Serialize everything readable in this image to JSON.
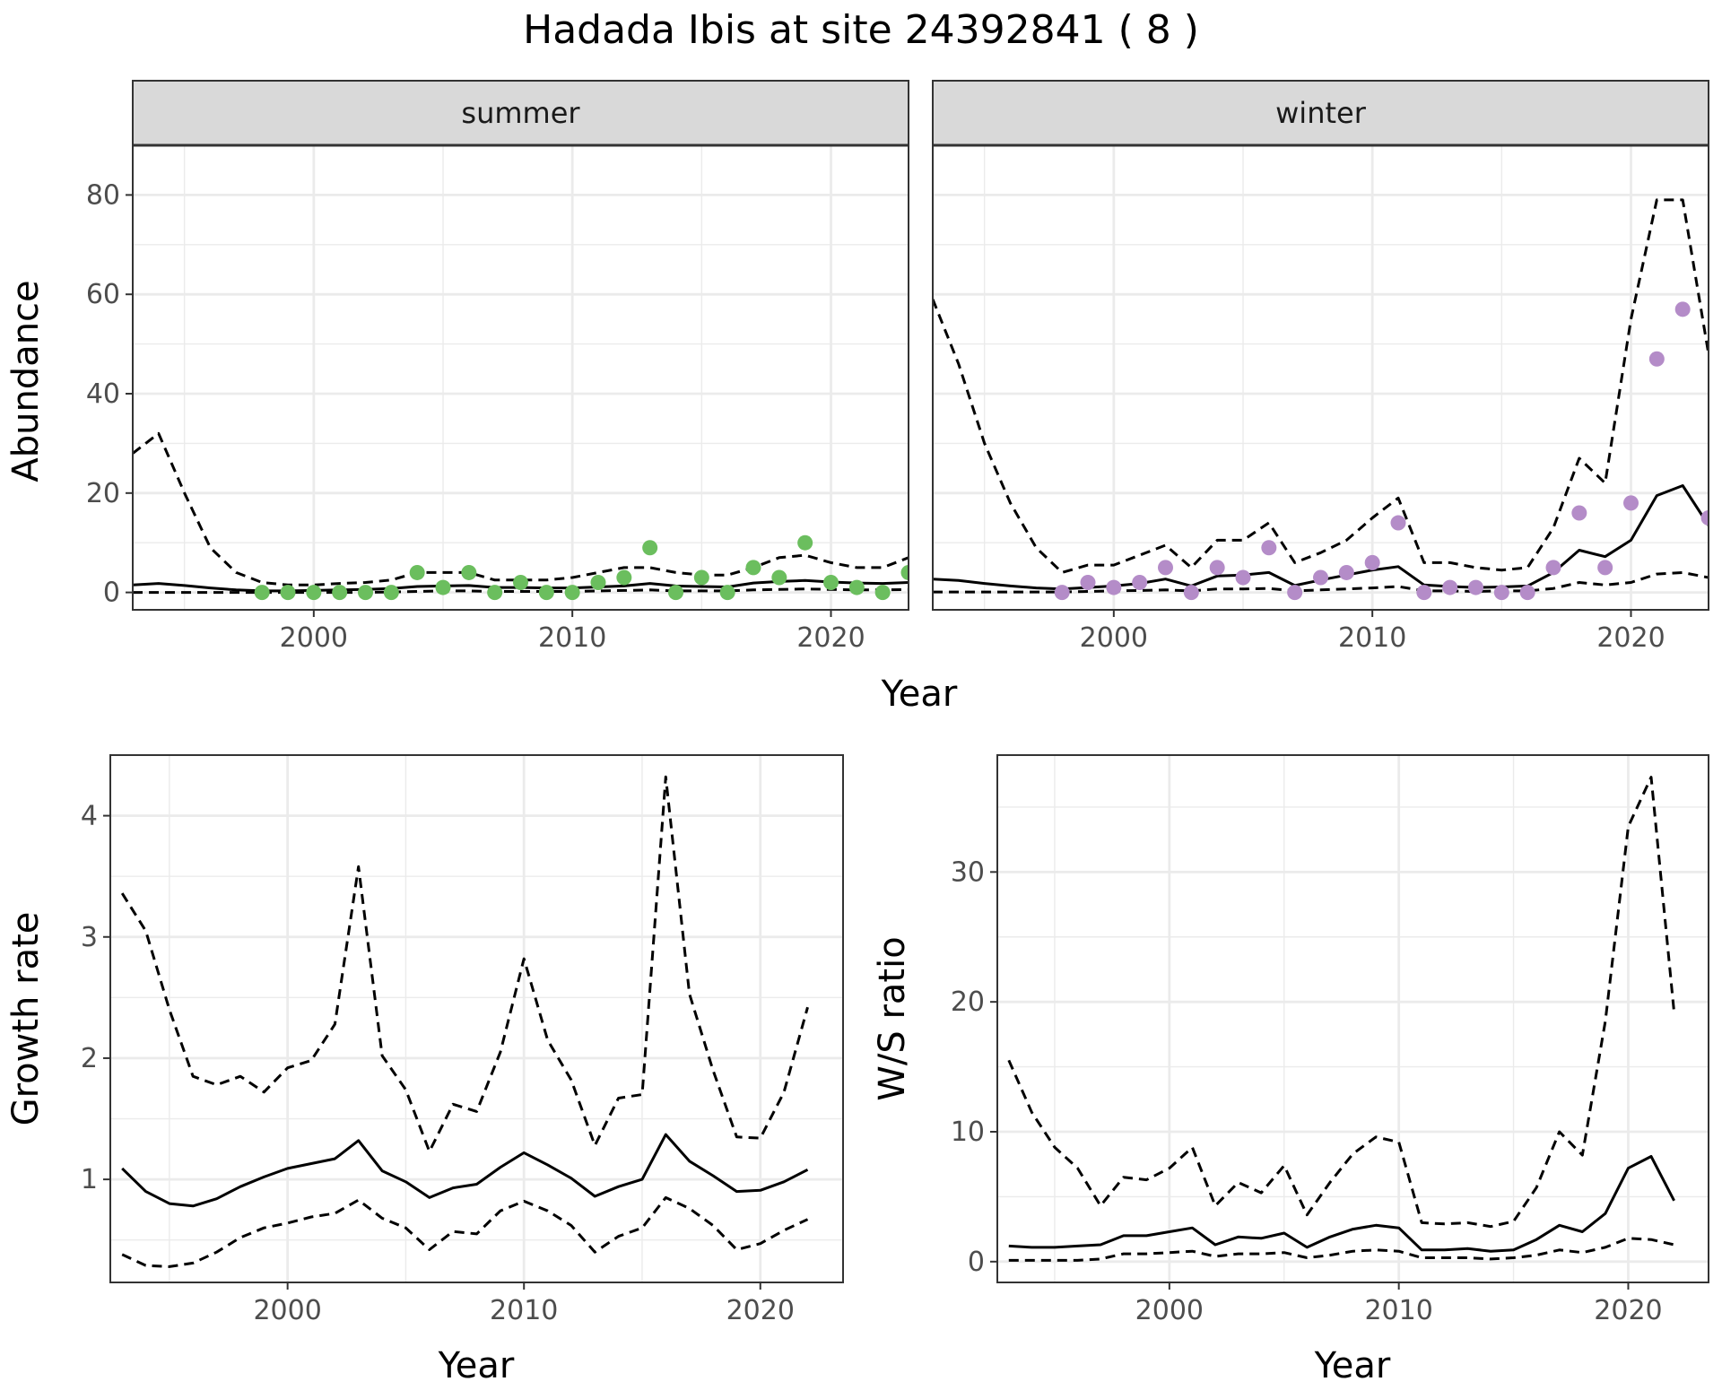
{
  "title": "Hadada Ibis at site 24392841 ( 8 )",
  "colors": {
    "summer_points": "#6BBE5E",
    "winter_points": "#B48CC8",
    "strip_fill": "#D9D9D9",
    "grid_major": "#EBEBEB",
    "line": "#000000"
  },
  "chart_data": [
    {
      "type": "line",
      "panel": "summer",
      "facet_label": "summer",
      "xlabel": "Year",
      "ylabel": "Abundance",
      "xlim": [
        1993,
        2023
      ],
      "ylim": [
        -3.5,
        90
      ],
      "xticks": [
        2000,
        2010,
        2020
      ],
      "yticks": [
        0,
        20,
        40,
        60,
        80
      ],
      "grid": true,
      "points": {
        "color": "#6BBE5E",
        "x": [
          1998,
          1999,
          2000,
          2001,
          2002,
          2003,
          2004,
          2005,
          2006,
          2007,
          2008,
          2009,
          2010,
          2011,
          2012,
          2013,
          2014,
          2015,
          2016,
          2017,
          2018,
          2019,
          2020,
          2021,
          2022,
          2023
        ],
        "y": [
          0,
          0,
          0,
          0,
          0,
          0,
          4,
          1,
          4,
          0,
          2,
          0,
          0,
          2,
          3,
          9,
          0,
          3,
          0,
          5,
          3,
          10,
          2,
          1,
          0,
          4
        ]
      },
      "series": [
        {
          "style": "solid",
          "x": [
            1993,
            1994,
            1995,
            1996,
            1997,
            1998,
            1999,
            2000,
            2001,
            2002,
            2003,
            2004,
            2005,
            2006,
            2007,
            2008,
            2009,
            2010,
            2011,
            2012,
            2013,
            2014,
            2015,
            2016,
            2017,
            2018,
            2019,
            2020,
            2021,
            2022,
            2023
          ],
          "y": [
            1.5,
            1.8,
            1.4,
            0.9,
            0.5,
            0.3,
            0.3,
            0.4,
            0.5,
            0.6,
            0.8,
            1.2,
            1.3,
            1.4,
            1.0,
            1.0,
            0.9,
            0.9,
            1.1,
            1.3,
            1.8,
            1.3,
            1.2,
            1.1,
            1.9,
            2.2,
            2.4,
            2.1,
            1.9,
            1.8,
            2.0
          ]
        },
        {
          "style": "dashed",
          "x": [
            1993,
            1994,
            1995,
            1996,
            1997,
            1998,
            1999,
            2000,
            2001,
            2002,
            2003,
            2004,
            2005,
            2006,
            2007,
            2008,
            2009,
            2010,
            2011,
            2012,
            2013,
            2014,
            2015,
            2016,
            2017,
            2018,
            2019,
            2020,
            2021,
            2022,
            2023
          ],
          "y": [
            28,
            32,
            20,
            9,
            4,
            2,
            1.5,
            1.5,
            1.8,
            2,
            2.5,
            4,
            4,
            4,
            2.5,
            2.5,
            2.5,
            3,
            4,
            5,
            5,
            4,
            3.5,
            3.5,
            5,
            7,
            7.5,
            6,
            5,
            5,
            7
          ]
        },
        {
          "style": "dashed",
          "x": [
            1993,
            1994,
            1995,
            1996,
            1997,
            1998,
            1999,
            2000,
            2001,
            2002,
            2003,
            2004,
            2005,
            2006,
            2007,
            2008,
            2009,
            2010,
            2011,
            2012,
            2013,
            2014,
            2015,
            2016,
            2017,
            2018,
            2019,
            2020,
            2021,
            2022,
            2023
          ],
          "y": [
            0,
            0,
            0,
            0,
            0,
            0,
            0,
            0,
            0,
            0,
            0.1,
            0.2,
            0.3,
            0.3,
            0.2,
            0.2,
            0.2,
            0.2,
            0.3,
            0.4,
            0.5,
            0.3,
            0.3,
            0.3,
            0.5,
            0.6,
            0.7,
            0.6,
            0.5,
            0.5,
            0.6
          ]
        }
      ]
    },
    {
      "type": "line",
      "panel": "winter",
      "facet_label": "winter",
      "xlabel": "Year",
      "ylabel": "Abundance",
      "xlim": [
        1993,
        2023
      ],
      "ylim": [
        -3.5,
        90
      ],
      "xticks": [
        2000,
        2010,
        2020
      ],
      "yticks": [
        0,
        20,
        40,
        60,
        80
      ],
      "grid": true,
      "points": {
        "color": "#B48CC8",
        "x": [
          1998,
          1999,
          2000,
          2001,
          2002,
          2003,
          2004,
          2005,
          2006,
          2007,
          2008,
          2009,
          2010,
          2011,
          2012,
          2013,
          2014,
          2015,
          2016,
          2017,
          2018,
          2019,
          2020,
          2021,
          2022,
          2023
        ],
        "y": [
          0,
          2,
          1,
          2,
          5,
          0,
          5,
          3,
          9,
          0,
          3,
          4,
          6,
          14,
          0,
          1,
          1,
          0,
          0,
          5,
          16,
          5,
          18,
          47,
          57,
          15
        ]
      },
      "series": [
        {
          "style": "solid",
          "x": [
            1993,
            1994,
            1995,
            1996,
            1997,
            1998,
            1999,
            2000,
            2001,
            2002,
            2003,
            2004,
            2005,
            2006,
            2007,
            2008,
            2009,
            2010,
            2011,
            2012,
            2013,
            2014,
            2015,
            2016,
            2017,
            2018,
            2019,
            2020,
            2021,
            2022,
            2023
          ],
          "y": [
            2.7,
            2.4,
            1.8,
            1.3,
            0.9,
            0.7,
            1.0,
            1.3,
            1.8,
            2.7,
            1.3,
            3.3,
            3.5,
            4.0,
            1.4,
            2.5,
            3.5,
            4.5,
            5.2,
            1.5,
            1.2,
            1.0,
            1.1,
            1.3,
            4.0,
            8.5,
            7.2,
            10.5,
            19.5,
            21.5,
            13.5
          ]
        },
        {
          "style": "dashed",
          "x": [
            1993,
            1994,
            1995,
            1996,
            1997,
            1998,
            1999,
            2000,
            2001,
            2002,
            2003,
            2004,
            2005,
            2006,
            2007,
            2008,
            2009,
            2010,
            2011,
            2012,
            2013,
            2014,
            2015,
            2016,
            2017,
            2018,
            2019,
            2020,
            2021,
            2022,
            2023
          ],
          "y": [
            59,
            46,
            30,
            18,
            9,
            4,
            5.5,
            5.5,
            7.5,
            9.5,
            5,
            10.5,
            10.5,
            14,
            6,
            8,
            10.5,
            15,
            19,
            6,
            6,
            5,
            4.5,
            5,
            13,
            27,
            22,
            55,
            79,
            79,
            48
          ]
        },
        {
          "style": "dashed",
          "x": [
            1993,
            1994,
            1995,
            1996,
            1997,
            1998,
            1999,
            2000,
            2001,
            2002,
            2003,
            2004,
            2005,
            2006,
            2007,
            2008,
            2009,
            2010,
            2011,
            2012,
            2013,
            2014,
            2015,
            2016,
            2017,
            2018,
            2019,
            2020,
            2021,
            2022,
            2023
          ],
          "y": [
            0.1,
            0.1,
            0.1,
            0.1,
            0.1,
            0.1,
            0.2,
            0.3,
            0.4,
            0.5,
            0.3,
            0.7,
            0.7,
            0.8,
            0.3,
            0.5,
            0.7,
            0.9,
            1.2,
            0.3,
            0.3,
            0.2,
            0.3,
            0.3,
            0.8,
            2.0,
            1.5,
            2.0,
            3.7,
            4.0,
            3.0
          ]
        }
      ]
    },
    {
      "type": "line",
      "panel": "growth",
      "xlabel": "Year",
      "ylabel": "Growth rate",
      "xlim": [
        1992.5,
        2023.5
      ],
      "ylim": [
        0.15,
        4.5
      ],
      "xticks": [
        2000,
        2010,
        2020
      ],
      "yticks": [
        1,
        2,
        3,
        4
      ],
      "grid": true,
      "series": [
        {
          "style": "solid",
          "x": [
            1993,
            1994,
            1995,
            1996,
            1997,
            1998,
            1999,
            2000,
            2001,
            2002,
            2003,
            2004,
            2005,
            2006,
            2007,
            2008,
            2009,
            2010,
            2011,
            2012,
            2013,
            2014,
            2015,
            2016,
            2017,
            2018,
            2019,
            2020,
            2021,
            2022
          ],
          "y": [
            1.09,
            0.9,
            0.8,
            0.78,
            0.84,
            0.94,
            1.02,
            1.09,
            1.13,
            1.17,
            1.32,
            1.07,
            0.98,
            0.85,
            0.93,
            0.96,
            1.1,
            1.22,
            1.12,
            1.01,
            0.86,
            0.94,
            1.0,
            1.37,
            1.15,
            1.03,
            0.9,
            0.91,
            0.98,
            1.08
          ]
        },
        {
          "style": "dashed",
          "x": [
            1993,
            1994,
            1995,
            1996,
            1997,
            1998,
            1999,
            2000,
            2001,
            2002,
            2003,
            2004,
            2005,
            2006,
            2007,
            2008,
            2009,
            2010,
            2011,
            2012,
            2013,
            2014,
            2015,
            2016,
            2017,
            2018,
            2019,
            2020,
            2021,
            2022
          ],
          "y": [
            3.36,
            3.05,
            2.4,
            1.85,
            1.78,
            1.85,
            1.72,
            1.92,
            1.98,
            2.28,
            3.58,
            2.02,
            1.74,
            1.23,
            1.62,
            1.56,
            2.05,
            2.82,
            2.15,
            1.82,
            1.28,
            1.67,
            1.7,
            4.32,
            2.53,
            1.9,
            1.35,
            1.34,
            1.72,
            2.42
          ]
        },
        {
          "style": "dashed",
          "x": [
            1993,
            1994,
            1995,
            1996,
            1997,
            1998,
            1999,
            2000,
            2001,
            2002,
            2003,
            2004,
            2005,
            2006,
            2007,
            2008,
            2009,
            2010,
            2011,
            2012,
            2013,
            2014,
            2015,
            2016,
            2017,
            2018,
            2019,
            2020,
            2021,
            2022
          ],
          "y": [
            0.38,
            0.29,
            0.28,
            0.31,
            0.4,
            0.52,
            0.6,
            0.64,
            0.69,
            0.72,
            0.83,
            0.68,
            0.6,
            0.42,
            0.57,
            0.55,
            0.74,
            0.82,
            0.74,
            0.62,
            0.4,
            0.53,
            0.6,
            0.85,
            0.76,
            0.62,
            0.42,
            0.47,
            0.58,
            0.67
          ]
        }
      ]
    },
    {
      "type": "line",
      "panel": "ratio",
      "xlabel": "Year",
      "ylabel": "W/S ratio",
      "xlim": [
        1992.5,
        2023.5
      ],
      "ylim": [
        -1.6,
        39
      ],
      "xticks": [
        2000,
        2010,
        2020
      ],
      "yticks": [
        0,
        10,
        20,
        30
      ],
      "grid": true,
      "series": [
        {
          "style": "solid",
          "x": [
            1993,
            1994,
            1995,
            1996,
            1997,
            1998,
            1999,
            2000,
            2001,
            2002,
            2003,
            2004,
            2005,
            2006,
            2007,
            2008,
            2009,
            2010,
            2011,
            2012,
            2013,
            2014,
            2015,
            2016,
            2017,
            2018,
            2019,
            2020,
            2021,
            2022
          ],
          "y": [
            1.2,
            1.1,
            1.1,
            1.2,
            1.3,
            2.0,
            2.0,
            2.3,
            2.6,
            1.3,
            1.9,
            1.8,
            2.2,
            1.1,
            1.9,
            2.5,
            2.8,
            2.6,
            0.9,
            0.9,
            1.0,
            0.8,
            0.9,
            1.7,
            2.8,
            2.3,
            3.7,
            7.2,
            8.1,
            4.7
          ]
        },
        {
          "style": "dashed",
          "x": [
            1993,
            1994,
            1995,
            1996,
            1997,
            1998,
            1999,
            2000,
            2001,
            2002,
            2003,
            2004,
            2005,
            2006,
            2007,
            2008,
            2009,
            2010,
            2011,
            2012,
            2013,
            2014,
            2015,
            2016,
            2017,
            2018,
            2019,
            2020,
            2021,
            2022
          ],
          "y": [
            15.5,
            11.5,
            8.8,
            7.2,
            4.3,
            6.5,
            6.3,
            7.2,
            8.8,
            4.3,
            6.1,
            5.3,
            7.4,
            3.6,
            6.1,
            8.3,
            9.6,
            9.2,
            3.0,
            2.9,
            3.0,
            2.7,
            3.1,
            5.7,
            10.0,
            8.2,
            18.5,
            33.5,
            37.3,
            19.2
          ]
        },
        {
          "style": "dashed",
          "x": [
            1993,
            1994,
            1995,
            1996,
            1997,
            1998,
            1999,
            2000,
            2001,
            2002,
            2003,
            2004,
            2005,
            2006,
            2007,
            2008,
            2009,
            2010,
            2011,
            2012,
            2013,
            2014,
            2015,
            2016,
            2017,
            2018,
            2019,
            2020,
            2021,
            2022
          ],
          "y": [
            0.1,
            0.1,
            0.1,
            0.1,
            0.2,
            0.6,
            0.6,
            0.7,
            0.8,
            0.4,
            0.6,
            0.6,
            0.7,
            0.3,
            0.5,
            0.8,
            0.9,
            0.8,
            0.3,
            0.3,
            0.3,
            0.2,
            0.3,
            0.5,
            0.9,
            0.7,
            1.1,
            1.8,
            1.7,
            1.3
          ]
        }
      ]
    }
  ]
}
